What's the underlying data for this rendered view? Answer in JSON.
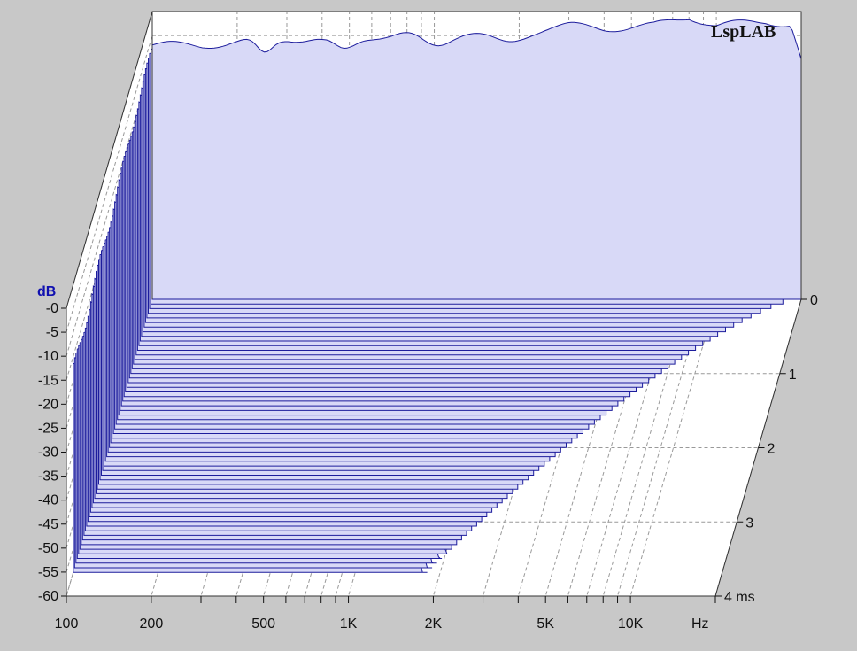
{
  "brand": "LspLAB",
  "chart_data": {
    "type": "waterfall",
    "title": "",
    "xlabel": "Hz",
    "ylabel": "dB",
    "zlabel": "ms",
    "x_scale": "log",
    "xlim": [
      100,
      20000
    ],
    "ylim": [
      -60,
      0
    ],
    "zlim": [
      0,
      4
    ],
    "x_ticks": [
      {
        "value": 100,
        "label": "100"
      },
      {
        "value": 200,
        "label": "200"
      },
      {
        "value": 500,
        "label": "500"
      },
      {
        "value": 1000,
        "label": "1K"
      },
      {
        "value": 2000,
        "label": "2K"
      },
      {
        "value": 5000,
        "label": "5K"
      },
      {
        "value": 10000,
        "label": "10K"
      }
    ],
    "x_unit_label": "Hz",
    "y_ticks": [
      {
        "value": 0,
        "label": "-0"
      },
      {
        "value": -5,
        "label": "-5"
      },
      {
        "value": -10,
        "label": "-10"
      },
      {
        "value": -15,
        "label": "-15"
      },
      {
        "value": -20,
        "label": "-20"
      },
      {
        "value": -25,
        "label": "-25"
      },
      {
        "value": -30,
        "label": "-30"
      },
      {
        "value": -35,
        "label": "-35"
      },
      {
        "value": -40,
        "label": "-40"
      },
      {
        "value": -45,
        "label": "-45"
      },
      {
        "value": -50,
        "label": "-50"
      },
      {
        "value": -55,
        "label": "-55"
      },
      {
        "value": -60,
        "label": "-60"
      }
    ],
    "y_unit_label": "dB",
    "z_ticks": [
      {
        "value": 0,
        "label": "0"
      },
      {
        "value": 1,
        "label": "1"
      },
      {
        "value": 2,
        "label": "2"
      },
      {
        "value": 3,
        "label": "3"
      },
      {
        "value": 4,
        "label": "4 ms"
      }
    ],
    "slices": 60,
    "slice_interval_ms": 0.067,
    "back_slice_profile_db": [
      [
        100,
        -7
      ],
      [
        150,
        -7
      ],
      [
        200,
        -6.5
      ],
      [
        300,
        -5.5
      ],
      [
        400,
        -6
      ],
      [
        500,
        -5
      ],
      [
        700,
        -5
      ],
      [
        1000,
        -4
      ],
      [
        1500,
        -4
      ],
      [
        2000,
        -3.5
      ],
      [
        3000,
        -3
      ],
      [
        4000,
        -3.5
      ],
      [
        6000,
        -3
      ],
      [
        8000,
        -1
      ],
      [
        10000,
        -3
      ],
      [
        15000,
        -2
      ],
      [
        20000,
        -3
      ]
    ],
    "front_slice_profile_db": [
      [
        100,
        -18
      ],
      [
        150,
        -19
      ],
      [
        200,
        -25
      ],
      [
        250,
        -33
      ],
      [
        300,
        -30
      ],
      [
        400,
        -28
      ],
      [
        500,
        -37
      ],
      [
        600,
        -32
      ],
      [
        800,
        -33
      ],
      [
        1000,
        -38
      ],
      [
        1200,
        -33
      ],
      [
        1600,
        -36
      ],
      [
        1800,
        -40
      ]
    ],
    "notches_hz": [
      250,
      480,
      1000,
      1800
    ],
    "grid": true,
    "fill_color": "#d8d9f7",
    "line_color": "#1c1c9c",
    "background_color": "#ffffff",
    "frame_color": "#c8c8c8",
    "grid_color": "#999999"
  }
}
